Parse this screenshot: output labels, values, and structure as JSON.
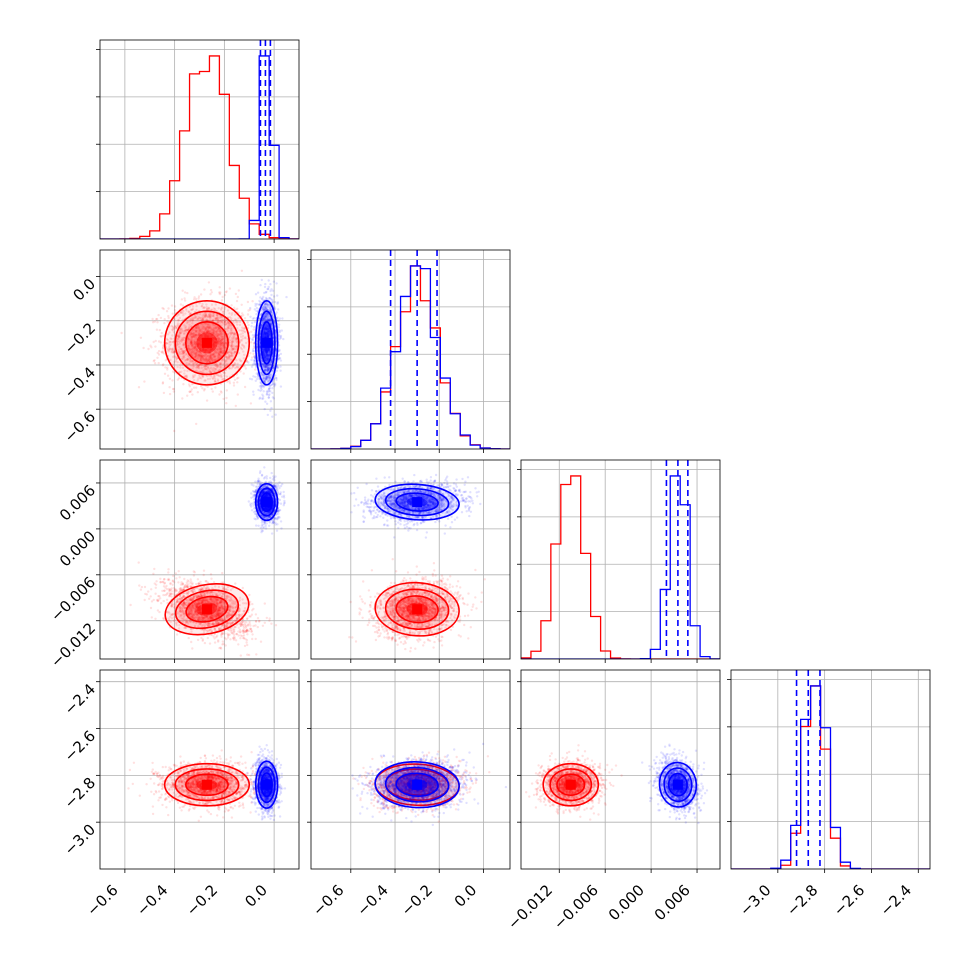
{
  "chart_data": {
    "type": "corner",
    "parameters": 4,
    "title": "",
    "grid": true,
    "colors": {
      "red": "#ff0000",
      "blue": "#0000ff"
    },
    "series": [
      {
        "color_key": "red",
        "means": [
          -0.27,
          -0.3,
          -0.0105,
          -2.84
        ],
        "sds": [
          0.085,
          0.095,
          0.0018,
          0.045
        ],
        "corr_01": 0.0,
        "corr_02": -0.45,
        "corr_12": 0.15,
        "corr_03": 0.0,
        "corr_13": 0.1,
        "corr_23": 0.0
      },
      {
        "color_key": "blue",
        "means": [
          -0.03,
          -0.3,
          0.0035,
          -2.84
        ],
        "sds": [
          0.022,
          0.095,
          0.0012,
          0.05
        ],
        "corr_01": 0.0,
        "corr_02": 0.0,
        "corr_12": 0.15,
        "corr_03": 0.0,
        "corr_13": 0.1,
        "corr_23": -0.2
      }
    ],
    "axes": [
      {
        "range": [
          -0.7,
          0.1
        ],
        "ticks": [
          -0.6,
          -0.4,
          -0.2,
          0.0
        ],
        "tick_labels": [
          "−0.6",
          "−0.4",
          "−0.2",
          "0.0"
        ]
      },
      {
        "range": [
          -0.78,
          0.12
        ],
        "ticks": [
          -0.6,
          -0.4,
          -0.2,
          0.0
        ],
        "tick_labels": [
          "−0.6",
          "−0.4",
          "−0.2",
          "0.0"
        ]
      },
      {
        "range": [
          -0.017,
          0.009
        ],
        "ticks": [
          -0.012,
          -0.006,
          0.0,
          0.006
        ],
        "tick_labels": [
          "−0.012",
          "−0.006",
          "0.000",
          "0.006"
        ]
      },
      {
        "range": [
          -3.2,
          -2.35
        ],
        "ticks": [
          -3.0,
          -2.8,
          -2.6,
          -2.4
        ],
        "tick_labels": [
          "−3.0",
          "−2.8",
          "−2.6",
          "−2.4"
        ]
      }
    ],
    "diag_quantiles_blue": [
      [
        -0.055,
        -0.035,
        -0.015
      ],
      [
        -0.42,
        -0.3,
        -0.21
      ],
      [
        0.002,
        0.0035,
        0.0048
      ],
      [
        -2.92,
        -2.87,
        -2.82
      ]
    ]
  }
}
